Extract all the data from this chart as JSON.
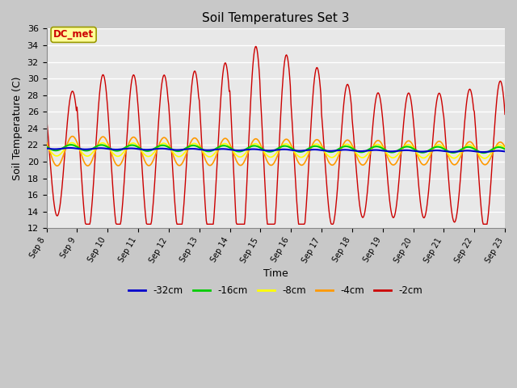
{
  "title": "Soil Temperatures Set 3",
  "xlabel": "Time",
  "ylabel": "Soil Temperature (C)",
  "ylim": [
    12,
    36
  ],
  "yticks": [
    12,
    14,
    16,
    18,
    20,
    22,
    24,
    26,
    28,
    30,
    32,
    34,
    36
  ],
  "fig_bg_color": "#c8c8c8",
  "plot_bg_color": "#e8e8e8",
  "annotation_text": "DC_met",
  "annotation_bg": "#ffff99",
  "annotation_border": "#999900",
  "annotation_text_color": "#cc0000",
  "series_colors": {
    "-32cm": "#0000cc",
    "-16cm": "#00cc00",
    "-8cm": "#ffff00",
    "-4cm": "#ff9900",
    "-2cm": "#cc0000"
  },
  "legend_labels": [
    "-32cm",
    "-16cm",
    "-8cm",
    "-4cm",
    "-2cm"
  ],
  "xtick_labels": [
    "Sep 8",
    "Sep 9",
    "Sep 10",
    "Sep 11",
    "Sep 12",
    "Sep 13",
    "Sep 14",
    "Sep 15",
    "Sep 16",
    "Sep 17",
    "Sep 18",
    "Sep 19",
    "Sep 20",
    "Sep 21",
    "Sep 22",
    "Sep 23"
  ]
}
